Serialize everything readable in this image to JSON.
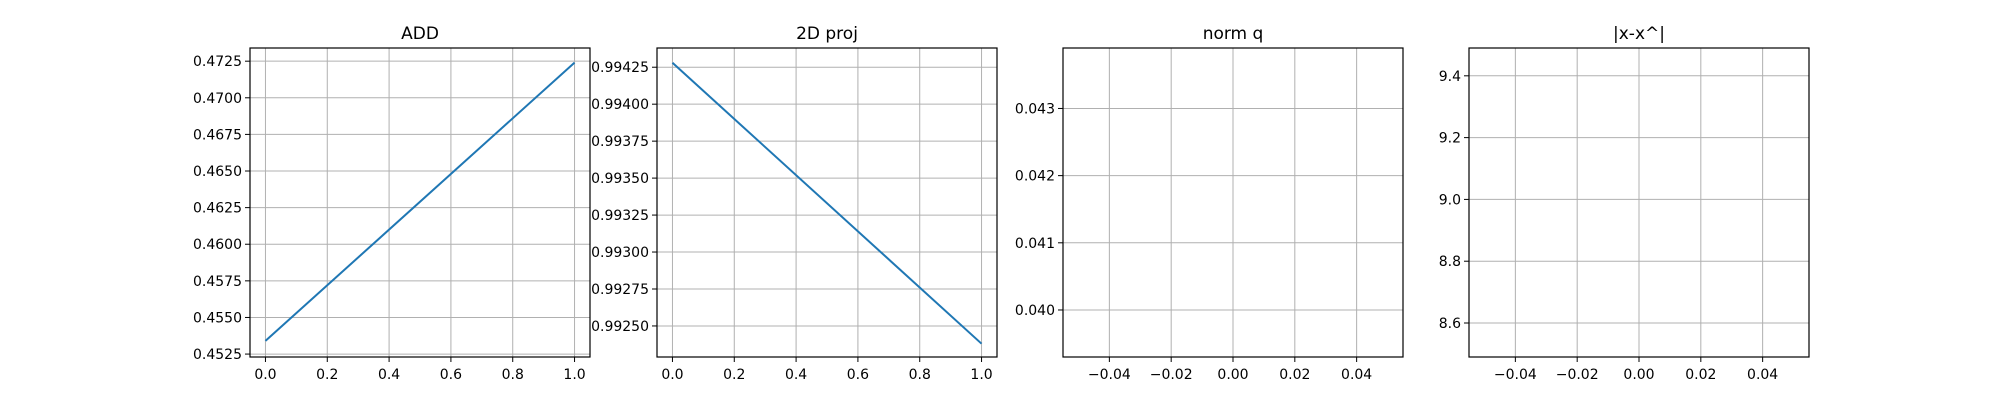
{
  "chart_data": [
    {
      "type": "line",
      "title": "ADD",
      "xlabel": "",
      "ylabel": "",
      "grid": true,
      "xlim": [
        -0.05,
        1.05
      ],
      "ylim": [
        0.4523,
        0.4734
      ],
      "xticks": [
        0.0,
        0.2,
        0.4,
        0.6,
        0.8,
        1.0
      ],
      "xtick_labels": [
        "0.0",
        "0.2",
        "0.4",
        "0.6",
        "0.8",
        "1.0"
      ],
      "yticks": [
        0.4525,
        0.455,
        0.4575,
        0.46,
        0.4625,
        0.465,
        0.4675,
        0.47,
        0.4725
      ],
      "ytick_labels": [
        "0.4525",
        "0.4550",
        "0.4575",
        "0.4600",
        "0.4625",
        "0.4650",
        "0.4675",
        "0.4700",
        "0.4725"
      ],
      "series": [
        {
          "x": [
            0,
            1
          ],
          "y": [
            0.4534,
            0.4724
          ],
          "color": "#1f77b4"
        }
      ]
    },
    {
      "type": "line",
      "title": "2D proj",
      "xlabel": "",
      "ylabel": "",
      "grid": true,
      "xlim": [
        -0.05,
        1.05
      ],
      "ylim": [
        0.99229,
        0.99438
      ],
      "xticks": [
        0.0,
        0.2,
        0.4,
        0.6,
        0.8,
        1.0
      ],
      "xtick_labels": [
        "0.0",
        "0.2",
        "0.4",
        "0.6",
        "0.8",
        "1.0"
      ],
      "yticks": [
        0.9925,
        0.99275,
        0.993,
        0.99325,
        0.9935,
        0.99375,
        0.994,
        0.99425
      ],
      "ytick_labels": [
        "0.99250",
        "0.99275",
        "0.99300",
        "0.99325",
        "0.99350",
        "0.99375",
        "0.99400",
        "0.99425"
      ],
      "series": [
        {
          "x": [
            0,
            1
          ],
          "y": [
            0.99428,
            0.99238
          ],
          "color": "#1f77b4"
        }
      ]
    },
    {
      "type": "line",
      "title": "norm q",
      "xlabel": "",
      "ylabel": "",
      "grid": true,
      "xlim": [
        -0.055,
        0.055
      ],
      "ylim": [
        0.0393,
        0.0439
      ],
      "xticks": [
        -0.04,
        -0.02,
        0.0,
        0.02,
        0.04
      ],
      "xtick_labels": [
        "−0.04",
        "−0.02",
        "0.00",
        "0.02",
        "0.04"
      ],
      "yticks": [
        0.04,
        0.041,
        0.042,
        0.043
      ],
      "ytick_labels": [
        "0.040",
        "0.041",
        "0.042",
        "0.043"
      ],
      "series": []
    },
    {
      "type": "line",
      "title": "|x-x^|",
      "xlabel": "",
      "ylabel": "",
      "grid": true,
      "xlim": [
        -0.055,
        0.055
      ],
      "ylim": [
        8.49,
        9.49
      ],
      "xticks": [
        -0.04,
        -0.02,
        0.0,
        0.02,
        0.04
      ],
      "xtick_labels": [
        "−0.04",
        "−0.02",
        "0.00",
        "0.02",
        "0.04"
      ],
      "yticks": [
        8.6,
        8.8,
        9.0,
        9.2,
        9.4
      ],
      "ytick_labels": [
        "8.6",
        "8.8",
        "9.0",
        "9.2",
        "9.4"
      ],
      "series": []
    }
  ]
}
